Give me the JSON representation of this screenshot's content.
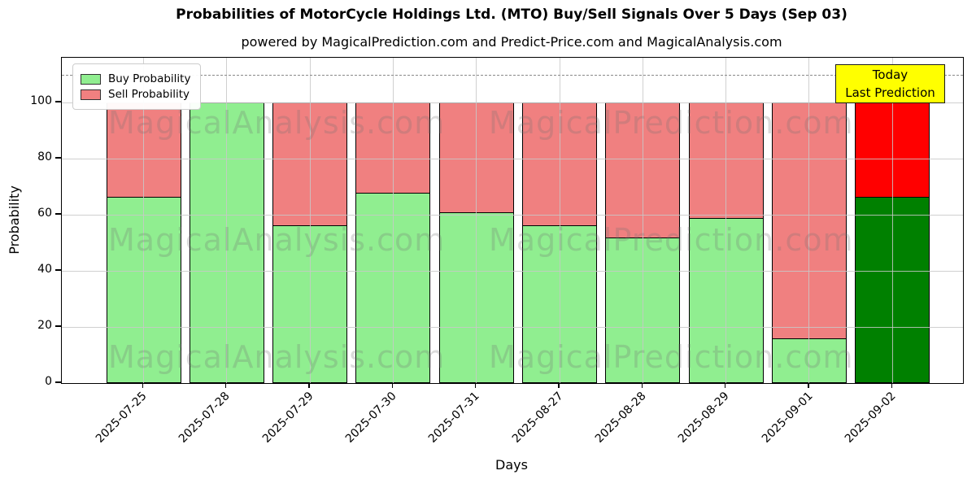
{
  "chart_data": {
    "type": "bar",
    "stacked": true,
    "title": "Probabilities of MotorCycle Holdings Ltd. (MTO) Buy/Sell Signals Over 5 Days (Sep 03)",
    "subtitle": "powered by MagicalPrediction.com and Predict-Price.com and MagicalAnalysis.com",
    "xlabel": "Days",
    "ylabel": "Probability",
    "categories": [
      "2025-07-25",
      "2025-07-28",
      "2025-07-29",
      "2025-07-30",
      "2025-07-31",
      "2025-08-27",
      "2025-08-28",
      "2025-08-29",
      "2025-09-01",
      "2025-09-02"
    ],
    "series": [
      {
        "name": "Buy Probability",
        "color": "#90EE90",
        "values": [
          66.5,
          100,
          56.5,
          68,
          61,
          56.5,
          52,
          59,
          16,
          66.5
        ]
      },
      {
        "name": "Sell Probability",
        "color": "#F08080",
        "values": [
          33.5,
          0,
          43.5,
          32,
          39,
          43.5,
          48,
          41,
          84,
          33.5
        ]
      }
    ],
    "today_bar": {
      "category": "2025-09-02",
      "buy_color": "#008000",
      "sell_color": "#FF0000"
    },
    "yticks": [
      0,
      20,
      40,
      60,
      80,
      100
    ],
    "ylim": [
      0,
      116
    ],
    "dashed_line_y": 110,
    "grid": "on",
    "legend_position": "upper left"
  },
  "annotation": {
    "line1": "Today",
    "line2": "Last Prediction",
    "bg_color": "#FFFF00"
  },
  "watermarks": {
    "left": "MagicalAnalysis.com",
    "right": "MagicalPrediction.com"
  },
  "colors": {
    "bar_edge": "#000000",
    "grid_line": "#C8C8C8",
    "dashed_line": "#8A8A8A",
    "axis": "#000000",
    "watermark": "rgba(110,110,110,0.25)"
  }
}
